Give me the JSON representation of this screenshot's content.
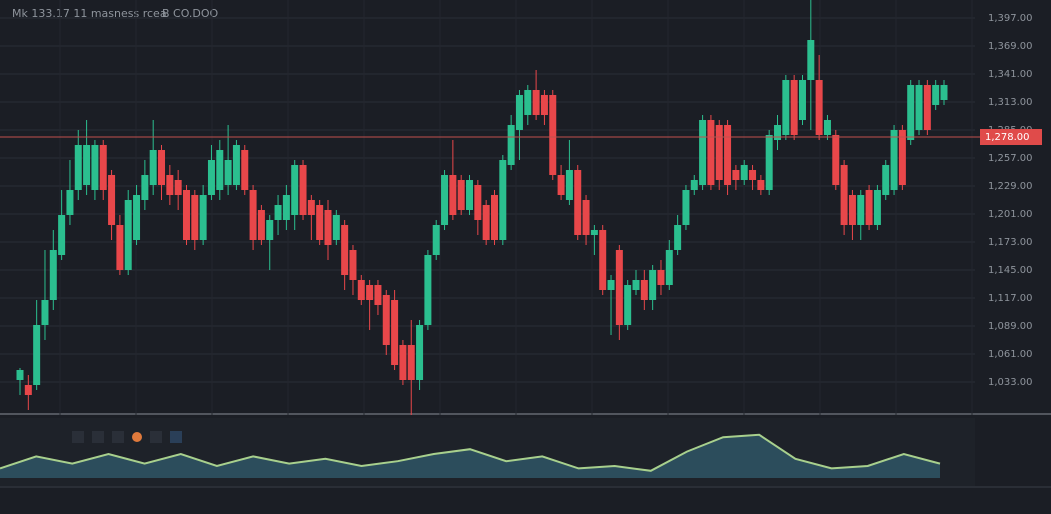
{
  "chart_data": {
    "type": "candlestick",
    "title": "Mk 133.17 11 masness rcea",
    "subtitle": "B CO.DOO",
    "up_color": "#2bbf8f",
    "down_color": "#e8474a",
    "ylim": [
      1000,
      1415
    ],
    "yticks": [
      {
        "value": 1397,
        "label": "1,397.00"
      },
      {
        "value": 1369,
        "label": "1,369.00"
      },
      {
        "value": 1341,
        "label": "1,341.00"
      },
      {
        "value": 1313,
        "label": "1,313.00"
      },
      {
        "value": 1285,
        "label": "1,285.00"
      },
      {
        "value": 1257,
        "label": "1,257.00"
      },
      {
        "value": 1229,
        "label": "1,229.00"
      },
      {
        "value": 1201,
        "label": "1,201.00"
      },
      {
        "value": 1173,
        "label": "1,173.00"
      },
      {
        "value": 1145,
        "label": "1,145.00"
      },
      {
        "value": 1117,
        "label": "1,117.00"
      },
      {
        "value": 1089,
        "label": "1,089.00"
      },
      {
        "value": 1061,
        "label": "1,061.00"
      },
      {
        "value": 1033,
        "label": "1,033.00"
      }
    ],
    "grid": true,
    "last_price": {
      "value": 1278,
      "label": "1,278.00"
    },
    "open": [
      1035,
      1030,
      1030,
      1090,
      1115,
      1160,
      1200,
      1225,
      1230,
      1225,
      1270,
      1240,
      1190,
      1145,
      1175,
      1215,
      1230,
      1265,
      1240,
      1235,
      1225,
      1220,
      1175,
      1220,
      1225,
      1230,
      1230,
      1265,
      1225,
      1205,
      1175,
      1195,
      1195,
      1200,
      1250,
      1215,
      1210,
      1205,
      1175,
      1190,
      1165,
      1135,
      1130,
      1130,
      1120,
      1115,
      1070,
      1070,
      1035,
      1090,
      1160,
      1190,
      1240,
      1235,
      1205,
      1230,
      1210,
      1220,
      1175,
      1250,
      1285,
      1300,
      1325,
      1320,
      1320,
      1240,
      1215,
      1245,
      1215,
      1180,
      1185,
      1125,
      1165,
      1090,
      1125,
      1135,
      1115,
      1145,
      1130,
      1165,
      1190,
      1225,
      1230,
      1295,
      1290,
      1290,
      1245,
      1235,
      1245,
      1235,
      1225,
      1275,
      1280,
      1335,
      1295,
      1335,
      1335,
      1280,
      1280,
      1250,
      1220,
      1190,
      1225,
      1190,
      1220,
      1225,
      1285,
      1275,
      1285,
      1330,
      1310,
      1315
    ],
    "high": [
      1047,
      1040,
      1115,
      1165,
      1185,
      1225,
      1255,
      1285,
      1295,
      1275,
      1275,
      1245,
      1200,
      1225,
      1230,
      1255,
      1295,
      1270,
      1250,
      1245,
      1230,
      1225,
      1230,
      1270,
      1275,
      1290,
      1275,
      1270,
      1230,
      1210,
      1200,
      1220,
      1230,
      1255,
      1255,
      1220,
      1215,
      1215,
      1205,
      1195,
      1170,
      1140,
      1135,
      1135,
      1125,
      1125,
      1075,
      1095,
      1095,
      1165,
      1195,
      1245,
      1275,
      1240,
      1240,
      1235,
      1215,
      1225,
      1260,
      1300,
      1325,
      1330,
      1345,
      1325,
      1325,
      1250,
      1275,
      1250,
      1220,
      1190,
      1190,
      1140,
      1170,
      1135,
      1145,
      1145,
      1150,
      1155,
      1175,
      1200,
      1230,
      1240,
      1300,
      1300,
      1295,
      1295,
      1250,
      1255,
      1250,
      1240,
      1285,
      1300,
      1340,
      1340,
      1340,
      1415,
      1360,
      1300,
      1285,
      1255,
      1225,
      1225,
      1230,
      1230,
      1255,
      1290,
      1290,
      1335,
      1335,
      1335,
      1335,
      1335
    ],
    "low": [
      1020,
      1005,
      1025,
      1075,
      1105,
      1155,
      1190,
      1215,
      1220,
      1215,
      1215,
      1175,
      1140,
      1140,
      1170,
      1205,
      1220,
      1215,
      1210,
      1205,
      1170,
      1165,
      1170,
      1215,
      1215,
      1220,
      1225,
      1220,
      1165,
      1170,
      1145,
      1180,
      1185,
      1185,
      1195,
      1175,
      1170,
      1155,
      1170,
      1125,
      1120,
      1110,
      1085,
      1100,
      1060,
      1045,
      1030,
      1000,
      1025,
      1085,
      1155,
      1185,
      1195,
      1200,
      1200,
      1180,
      1170,
      1170,
      1170,
      1245,
      1255,
      1290,
      1295,
      1290,
      1235,
      1215,
      1210,
      1175,
      1170,
      1160,
      1120,
      1080,
      1075,
      1085,
      1120,
      1105,
      1105,
      1120,
      1125,
      1160,
      1185,
      1220,
      1225,
      1225,
      1225,
      1220,
      1225,
      1230,
      1225,
      1220,
      1220,
      1265,
      1275,
      1275,
      1290,
      1285,
      1275,
      1275,
      1225,
      1180,
      1175,
      1175,
      1185,
      1185,
      1215,
      1220,
      1225,
      1270,
      1280,
      1280,
      1305,
      1310
    ],
    "close": [
      1045,
      1020,
      1090,
      1115,
      1165,
      1200,
      1225,
      1270,
      1270,
      1270,
      1225,
      1190,
      1145,
      1215,
      1220,
      1240,
      1265,
      1230,
      1220,
      1220,
      1175,
      1175,
      1220,
      1255,
      1265,
      1255,
      1270,
      1225,
      1175,
      1175,
      1195,
      1210,
      1220,
      1250,
      1200,
      1200,
      1175,
      1170,
      1200,
      1140,
      1135,
      1115,
      1115,
      1110,
      1070,
      1050,
      1035,
      1035,
      1090,
      1160,
      1190,
      1240,
      1200,
      1205,
      1235,
      1195,
      1175,
      1175,
      1255,
      1290,
      1320,
      1325,
      1300,
      1300,
      1240,
      1220,
      1245,
      1180,
      1180,
      1185,
      1125,
      1135,
      1090,
      1130,
      1135,
      1115,
      1145,
      1130,
      1165,
      1190,
      1225,
      1235,
      1295,
      1230,
      1235,
      1230,
      1235,
      1250,
      1235,
      1225,
      1280,
      1290,
      1335,
      1280,
      1335,
      1375,
      1280,
      1295,
      1230,
      1190,
      1190,
      1220,
      1190,
      1225,
      1250,
      1285,
      1230,
      1330,
      1330,
      1285,
      1330,
      1330
    ],
    "oscillator": {
      "color": "#a8d08d",
      "fill": "#2f5565",
      "ylim": [
        0,
        100
      ],
      "values": [
        20,
        45,
        30,
        50,
        30,
        50,
        25,
        45,
        30,
        40,
        25,
        35,
        50,
        60,
        35,
        45,
        20,
        25,
        15,
        55,
        85,
        90,
        40,
        20,
        25,
        50,
        30
      ]
    }
  }
}
